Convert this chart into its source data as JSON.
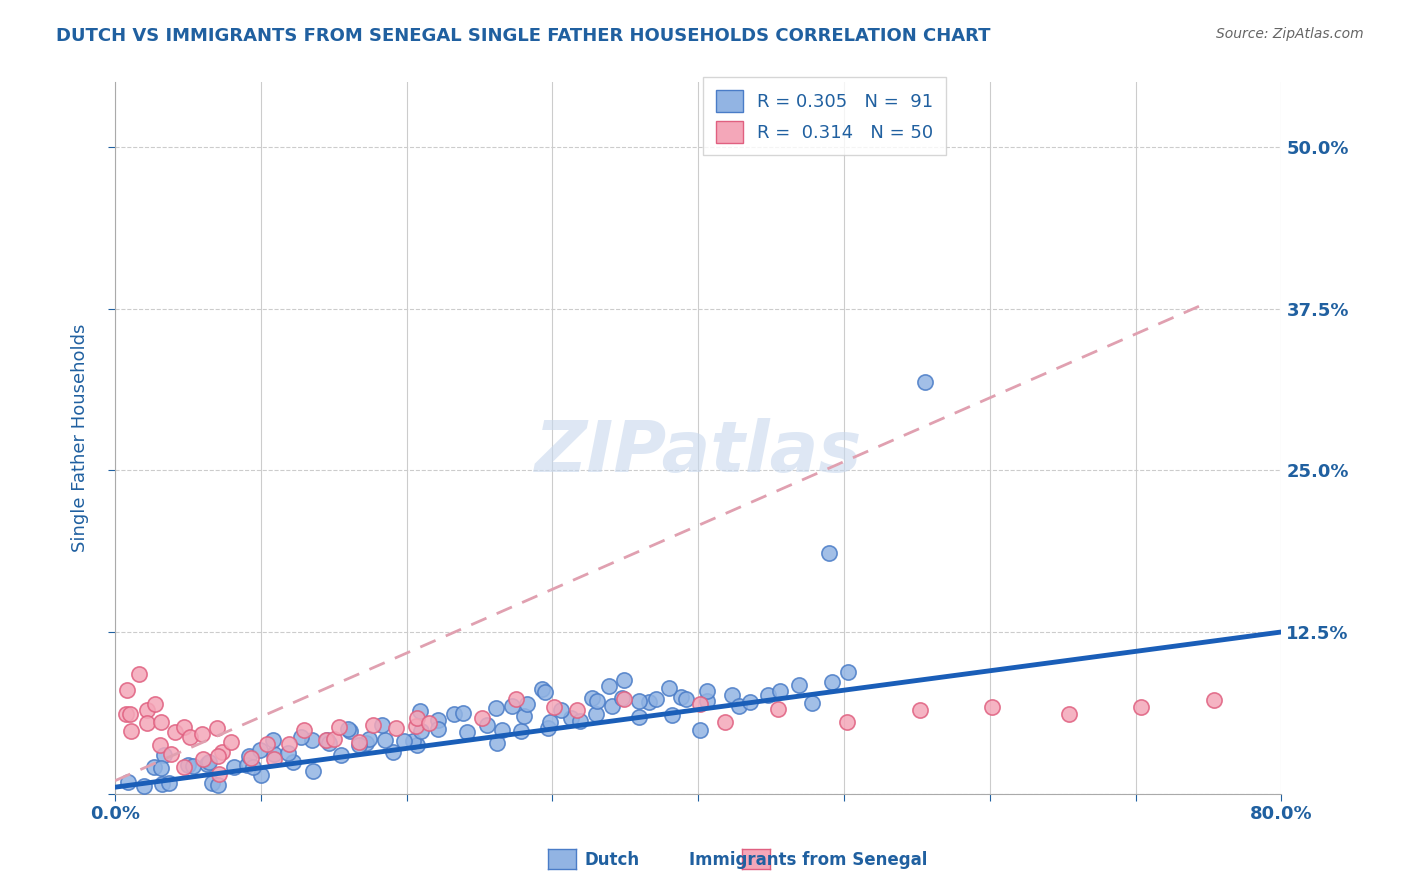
{
  "title": "DUTCH VS IMMIGRANTS FROM SENEGAL SINGLE FATHER HOUSEHOLDS CORRELATION CHART",
  "source": "Source: ZipAtlas.com",
  "ylabel_label": "Single Father Households",
  "x_ticks": [
    0.0,
    0.1,
    0.2,
    0.3,
    0.4,
    0.5,
    0.6,
    0.7,
    0.8
  ],
  "y_ticks": [
    0.0,
    0.125,
    0.25,
    0.375,
    0.5
  ],
  "y_tick_labels": [
    "",
    "12.5%",
    "25.0%",
    "37.5%",
    "50.0%"
  ],
  "xlim": [
    0.0,
    0.8
  ],
  "ylim": [
    0.0,
    0.55
  ],
  "dutch_R": "0.305",
  "dutch_N": "91",
  "senegal_R": "0.314",
  "senegal_N": "50",
  "dutch_color": "#92b4e3",
  "dutch_edge_color": "#4a7cc7",
  "senegal_color": "#f4a7b9",
  "senegal_edge_color": "#e06080",
  "trendline_dutch_color": "#1a5eb8",
  "trendline_senegal_color": "#e0a0b0",
  "background_color": "#ffffff",
  "grid_color": "#cccccc",
  "title_color": "#2060a0",
  "axis_label_color": "#2060a0",
  "tick_label_color": "#2060a0",
  "dutch_scatter_x": [
    0.02,
    0.03,
    0.04,
    0.05,
    0.06,
    0.07,
    0.08,
    0.09,
    0.1,
    0.11,
    0.12,
    0.13,
    0.14,
    0.15,
    0.16,
    0.17,
    0.18,
    0.19,
    0.2,
    0.21,
    0.22,
    0.23,
    0.24,
    0.25,
    0.26,
    0.27,
    0.28,
    0.29,
    0.3,
    0.31,
    0.32,
    0.33,
    0.34,
    0.35,
    0.36,
    0.37,
    0.38,
    0.39,
    0.4,
    0.41,
    0.42,
    0.43,
    0.44,
    0.45,
    0.46,
    0.47,
    0.48,
    0.49,
    0.5,
    0.01,
    0.02,
    0.03,
    0.04,
    0.05,
    0.06,
    0.07,
    0.08,
    0.09,
    0.1,
    0.11,
    0.12,
    0.13,
    0.14,
    0.15,
    0.16,
    0.17,
    0.18,
    0.19,
    0.2,
    0.21,
    0.22,
    0.23,
    0.24,
    0.25,
    0.26,
    0.27,
    0.28,
    0.29,
    0.3,
    0.31,
    0.32,
    0.33,
    0.34,
    0.35,
    0.36,
    0.37,
    0.38,
    0.39,
    0.4,
    0.5,
    0.55
  ],
  "dutch_scatter_y": [
    0.02,
    0.03,
    0.01,
    0.02,
    0.02,
    0.01,
    0.02,
    0.02,
    0.02,
    0.03,
    0.03,
    0.02,
    0.04,
    0.03,
    0.05,
    0.04,
    0.04,
    0.03,
    0.04,
    0.04,
    0.05,
    0.05,
    0.05,
    0.04,
    0.05,
    0.05,
    0.06,
    0.05,
    0.06,
    0.06,
    0.06,
    0.07,
    0.06,
    0.07,
    0.07,
    0.07,
    0.06,
    0.07,
    0.07,
    0.08,
    0.08,
    0.07,
    0.07,
    0.08,
    0.08,
    0.08,
    0.07,
    0.08,
    0.09,
    0.01,
    0.01,
    0.02,
    0.01,
    0.02,
    0.02,
    0.01,
    0.03,
    0.02,
    0.03,
    0.04,
    0.03,
    0.04,
    0.04,
    0.04,
    0.05,
    0.04,
    0.04,
    0.05,
    0.05,
    0.06,
    0.05,
    0.06,
    0.06,
    0.06,
    0.07,
    0.07,
    0.07,
    0.08,
    0.08,
    0.07,
    0.06,
    0.08,
    0.07,
    0.09,
    0.06,
    0.07,
    0.08,
    0.07,
    0.05,
    0.19,
    0.32
  ],
  "senegal_scatter_x": [
    0.005,
    0.01,
    0.01,
    0.015,
    0.02,
    0.02,
    0.025,
    0.025,
    0.03,
    0.03,
    0.04,
    0.04,
    0.05,
    0.05,
    0.055,
    0.06,
    0.06,
    0.065,
    0.07,
    0.07,
    0.08,
    0.08,
    0.09,
    0.1,
    0.11,
    0.12,
    0.13,
    0.14,
    0.15,
    0.16,
    0.17,
    0.18,
    0.19,
    0.2,
    0.21,
    0.22,
    0.25,
    0.28,
    0.3,
    0.32,
    0.35,
    0.4,
    0.42,
    0.45,
    0.5,
    0.55,
    0.6,
    0.65,
    0.7,
    0.75
  ],
  "senegal_scatter_y": [
    0.06,
    0.07,
    0.05,
    0.08,
    0.09,
    0.06,
    0.07,
    0.05,
    0.06,
    0.04,
    0.05,
    0.03,
    0.05,
    0.02,
    0.04,
    0.03,
    0.04,
    0.05,
    0.03,
    0.02,
    0.04,
    0.03,
    0.03,
    0.04,
    0.03,
    0.04,
    0.05,
    0.04,
    0.04,
    0.05,
    0.04,
    0.05,
    0.05,
    0.05,
    0.06,
    0.05,
    0.06,
    0.07,
    0.07,
    0.07,
    0.07,
    0.07,
    0.06,
    0.07,
    0.06,
    0.07,
    0.07,
    0.06,
    0.07,
    0.07
  ]
}
